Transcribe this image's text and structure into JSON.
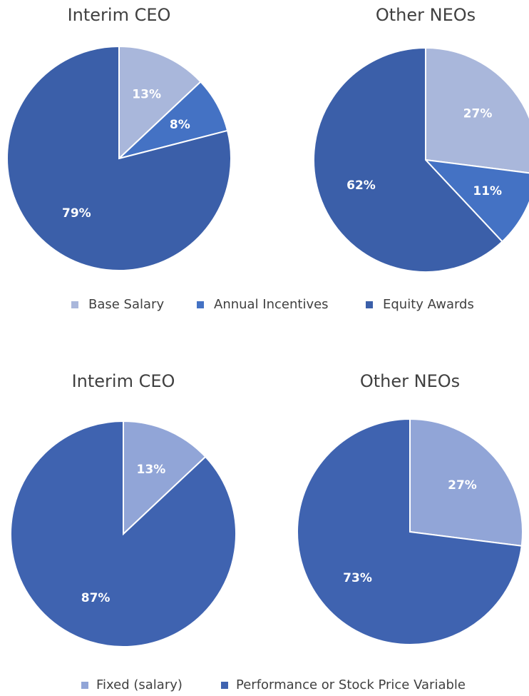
{
  "chart_data": [
    {
      "type": "pie",
      "categories": [
        "Base Salary",
        "Annual Incentives",
        "Equity Awards"
      ],
      "colors": [
        "#a9b7db",
        "#4472c4",
        "#3b5fa9"
      ],
      "pies": [
        {
          "title": "Interim CEO",
          "values": [
            13,
            8,
            79
          ],
          "value_labels": [
            "13%",
            "8%",
            "79%"
          ]
        },
        {
          "title": "Other NEOs",
          "values": [
            27,
            11,
            62
          ],
          "value_labels": [
            "27%",
            "11%",
            "62%"
          ]
        }
      ]
    },
    {
      "type": "pie",
      "categories": [
        "Fixed (salary)",
        "Performance or Stock Price Variable"
      ],
      "colors": [
        "#91a5d7",
        "#3f63b0"
      ],
      "pies": [
        {
          "title": "Interim CEO",
          "values": [
            13,
            87
          ],
          "value_labels": [
            "13%",
            "87%"
          ]
        },
        {
          "title": "Other NEOs",
          "values": [
            27,
            73
          ],
          "value_labels": [
            "27%",
            "73%"
          ]
        }
      ]
    }
  ]
}
